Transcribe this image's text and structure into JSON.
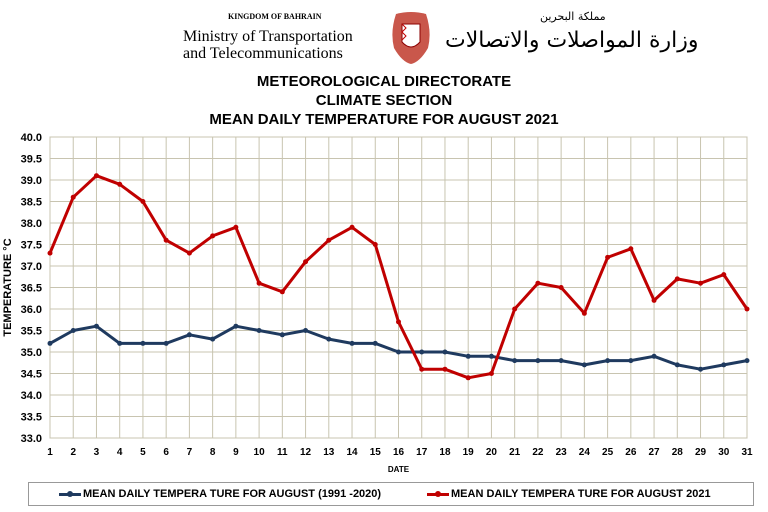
{
  "header": {
    "kingdom": "KINGDOM OF BAHRAIN",
    "ministry_line1": "Ministry of Transportation",
    "ministry_line2": "and Telecommunications",
    "arabic_line1": "مملكة البحرين",
    "arabic_line2": "وزارة المواصلات والاتصالات"
  },
  "chart_data": {
    "type": "line",
    "title_lines": [
      "METEOROLOGICAL DIRECTORATE",
      "CLIMATE SECTION",
      "MEAN DAILY TEMPERATURE  FOR AUGUST 2021"
    ],
    "xlabel": "DATE",
    "ylabel": "TEMPERATURE °C",
    "ylim": [
      33.0,
      40.0
    ],
    "ytick_step": 0.5,
    "grid": true,
    "legend_placement": "bottom",
    "x": [
      1,
      2,
      3,
      4,
      5,
      6,
      7,
      8,
      9,
      10,
      11,
      12,
      13,
      14,
      15,
      16,
      17,
      18,
      19,
      20,
      21,
      22,
      23,
      24,
      25,
      26,
      27,
      28,
      29,
      30,
      31
    ],
    "series": [
      {
        "name": "MEAN DAILY TEMPERA TURE FOR AUGUST (1991 -2020)",
        "color": "#1f3a5f",
        "values": [
          35.2,
          35.5,
          35.6,
          35.2,
          35.2,
          35.2,
          35.4,
          35.3,
          35.6,
          35.5,
          35.4,
          35.5,
          35.3,
          35.2,
          35.2,
          35.0,
          35.0,
          35.0,
          34.9,
          34.9,
          34.8,
          34.8,
          34.8,
          34.7,
          34.8,
          34.8,
          34.9,
          34.7,
          34.6,
          34.7,
          34.8
        ]
      },
      {
        "name": "MEAN DAILY TEMPERA TURE FOR AUGUST 2021",
        "color": "#c00000",
        "values": [
          37.3,
          38.6,
          39.1,
          38.9,
          38.5,
          37.6,
          37.3,
          37.7,
          37.9,
          36.6,
          36.4,
          37.1,
          37.6,
          37.9,
          37.5,
          35.7,
          34.6,
          34.6,
          34.4,
          34.5,
          36.0,
          36.6,
          36.5,
          35.9,
          37.2,
          37.4,
          36.2,
          36.7,
          36.6,
          36.8,
          36.0
        ]
      }
    ]
  }
}
